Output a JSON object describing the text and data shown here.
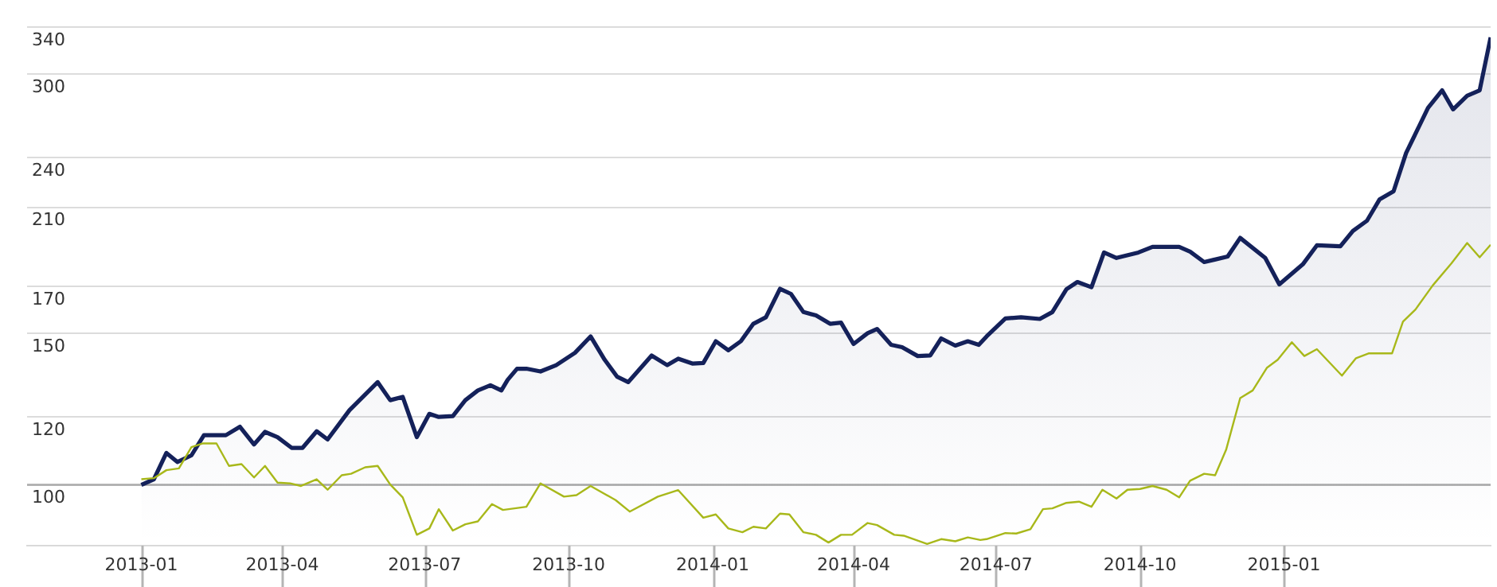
{
  "chart_data": {
    "type": "line",
    "log": "y",
    "grid": "y",
    "legend": false,
    "marker": "none",
    "line_style": "solid",
    "xlim": [
      "2012-10-20",
      "2015-05-13"
    ],
    "ylim": [
      85,
      340
    ],
    "ref_lines": [
      {
        "axis": "y",
        "value": 100,
        "color": "#aaaaaa"
      }
    ],
    "yticks": [
      100,
      120,
      150,
      170,
      210,
      240,
      300,
      340
    ],
    "xticks": [
      {
        "value": "2013-01-01",
        "label": "2013-01"
      },
      {
        "value": "2013-04-01",
        "label": "2013-04"
      },
      {
        "value": "2013-07-01",
        "label": "2013-07"
      },
      {
        "value": "2013-10-01",
        "label": "2013-10"
      },
      {
        "value": "2014-01-01",
        "label": "2014-01"
      },
      {
        "value": "2014-04-01",
        "label": "2014-04"
      },
      {
        "value": "2014-07-01",
        "label": "2014-07"
      },
      {
        "value": "2014-10-01",
        "label": "2014-10"
      },
      {
        "value": "2015-01-01",
        "label": "2015-01"
      }
    ],
    "series": [
      {
        "type": "area",
        "color": "#14215a",
        "x": [
          "2013-01-01",
          "2013-01-09",
          "2013-01-17",
          "2013-01-24",
          "2013-02-02",
          "2013-02-10",
          "2013-02-24",
          "2013-03-05",
          "2013-03-14",
          "2013-03-21",
          "2013-03-29",
          "2013-04-07",
          "2013-04-14",
          "2013-04-23",
          "2013-04-30",
          "2013-05-14",
          "2013-06-01",
          "2013-06-09",
          "2013-06-17",
          "2013-06-26",
          "2013-07-04",
          "2013-07-10",
          "2013-07-19",
          "2013-07-27",
          "2013-08-04",
          "2013-08-12",
          "2013-08-19",
          "2013-08-23",
          "2013-08-29",
          "2013-09-04",
          "2013-09-13",
          "2013-09-23",
          "2013-10-05",
          "2013-10-15",
          "2013-10-24",
          "2013-11-01",
          "2013-11-08",
          "2013-11-23",
          "2013-12-03",
          "2013-12-10",
          "2013-12-19",
          "2013-12-26",
          "2014-01-03",
          "2014-01-11",
          "2014-01-19",
          "2014-01-27",
          "2014-02-04",
          "2014-02-13",
          "2014-02-20",
          "2014-02-28",
          "2014-03-08",
          "2014-03-17",
          "2014-03-24",
          "2014-04-01",
          "2014-04-10",
          "2014-04-16",
          "2014-04-25",
          "2014-05-02",
          "2014-05-12",
          "2014-05-20",
          "2014-05-27",
          "2014-06-05",
          "2014-06-13",
          "2014-06-20",
          "2014-06-25",
          "2014-07-07",
          "2014-07-17",
          "2014-07-29",
          "2014-08-06",
          "2014-08-15",
          "2014-08-22",
          "2014-08-31",
          "2014-09-08",
          "2014-09-16",
          "2014-09-30",
          "2014-10-09",
          "2014-10-26",
          "2014-11-02",
          "2014-11-11",
          "2014-11-26",
          "2014-12-04",
          "2014-12-20",
          "2014-12-29",
          "2015-01-13",
          "2015-01-22",
          "2015-02-06",
          "2015-02-14",
          "2015-02-23",
          "2015-03-03",
          "2015-03-12",
          "2015-03-20",
          "2015-04-03",
          "2015-04-12",
          "2015-04-19",
          "2015-04-28",
          "2015-05-06",
          "2015-05-13"
        ],
        "values": [
          100,
          101.5,
          108.9,
          106.3,
          108.2,
          114.2,
          114.2,
          116.8,
          111.4,
          115.2,
          113.6,
          110.4,
          110.4,
          115.4,
          112.9,
          122.1,
          131.6,
          125.4,
          126.5,
          113.6,
          120.9,
          119.9,
          120.2,
          125.4,
          128.7,
          130.5,
          128.7,
          132.4,
          136.4,
          136.4,
          135.4,
          137.7,
          142.3,
          148.7,
          139.7,
          133.5,
          131.6,
          141.3,
          137.7,
          140.1,
          138.3,
          138.5,
          146.8,
          143.3,
          146.8,
          153.8,
          156.5,
          168.9,
          166.6,
          158.7,
          157.3,
          153.8,
          154.3,
          145.7,
          150,
          151.7,
          145.4,
          144.5,
          141.1,
          141.3,
          147.9,
          145.1,
          146.8,
          145.4,
          148.7,
          156,
          156.5,
          155.8,
          158.7,
          168.7,
          172,
          169.6,
          186.1,
          183.4,
          186.1,
          188.9,
          188.9,
          186.5,
          181.4,
          184.1,
          193.5,
          183.4,
          170.9,
          180.3,
          189.7,
          189.2,
          197.1,
          202.6,
          214.4,
          219.2,
          242.8,
          273.9,
          287.1,
          272.8,
          282.9,
          287.1,
          330.7
        ]
      },
      {
        "type": "line",
        "color": "#a8b81a",
        "x": [
          "2013-01-01",
          "2013-01-09",
          "2013-01-17",
          "2013-01-25",
          "2013-02-02",
          "2013-02-09",
          "2013-02-18",
          "2013-02-26",
          "2013-03-06",
          "2013-03-14",
          "2013-03-21",
          "2013-03-29",
          "2013-04-06",
          "2013-04-13",
          "2013-04-23",
          "2013-04-30",
          "2013-05-09",
          "2013-05-15",
          "2013-05-24",
          "2013-06-01",
          "2013-06-09",
          "2013-06-17",
          "2013-06-26",
          "2013-07-04",
          "2013-07-10",
          "2013-07-19",
          "2013-07-27",
          "2013-08-04",
          "2013-08-13",
          "2013-08-20",
          "2013-09-04",
          "2013-09-13",
          "2013-09-28",
          "2013-10-06",
          "2013-10-15",
          "2013-10-31",
          "2013-11-09",
          "2013-11-27",
          "2013-12-10",
          "2013-12-26",
          "2014-01-03",
          "2014-01-11",
          "2014-01-20",
          "2014-01-27",
          "2014-02-04",
          "2014-02-13",
          "2014-02-19",
          "2014-02-28",
          "2014-03-08",
          "2014-03-16",
          "2014-03-24",
          "2014-03-31",
          "2014-04-10",
          "2014-04-16",
          "2014-04-27",
          "2014-05-03",
          "2014-05-18",
          "2014-05-27",
          "2014-06-05",
          "2014-06-13",
          "2014-06-21",
          "2014-06-25",
          "2014-07-07",
          "2014-07-14",
          "2014-07-23",
          "2014-07-31",
          "2014-08-06",
          "2014-08-15",
          "2014-08-23",
          "2014-08-31",
          "2014-09-07",
          "2014-09-16",
          "2014-09-23",
          "2014-10-01",
          "2014-10-09",
          "2014-10-18",
          "2014-10-26",
          "2014-11-02",
          "2014-11-11",
          "2014-11-18",
          "2014-11-25",
          "2014-12-04",
          "2014-12-12",
          "2014-12-21",
          "2014-12-28",
          "2015-01-06",
          "2015-01-14",
          "2015-01-22",
          "2015-02-07",
          "2015-02-16",
          "2015-02-24",
          "2015-03-11",
          "2015-03-18",
          "2015-03-26",
          "2015-04-06",
          "2015-04-18",
          "2015-04-28",
          "2015-05-06",
          "2015-05-13"
        ],
        "values": [
          101.5,
          101.8,
          104,
          104.5,
          110.6,
          111.7,
          111.7,
          105.2,
          105.7,
          102,
          105.2,
          100.6,
          100.4,
          99.7,
          101.5,
          98.7,
          102.6,
          103,
          104.8,
          105.2,
          100.1,
          96.7,
          87.5,
          89,
          93.7,
          88.5,
          90,
          90.7,
          95,
          93.5,
          94.3,
          100.4,
          96.9,
          97.3,
          99.7,
          96,
          93.1,
          96.9,
          98.6,
          91.6,
          92.4,
          89,
          88.1,
          89.4,
          89,
          92.6,
          92.4,
          88.1,
          87.5,
          85.7,
          87.5,
          87.5,
          90.3,
          89.8,
          87.5,
          87.3,
          85.4,
          86.5,
          86,
          86.9,
          86.3,
          86.5,
          87.9,
          87.8,
          88.8,
          93.7,
          93.9,
          95.3,
          95.6,
          94.3,
          98.7,
          96.4,
          98.7,
          98.9,
          99.7,
          98.7,
          96.7,
          101.1,
          103,
          102.6,
          109.8,
          126.1,
          128.7,
          136.7,
          139.7,
          146.4,
          141.1,
          143.7,
          133.9,
          140.3,
          142.1,
          142.1,
          154.7,
          159.8,
          170.4,
          180.8,
          190.9,
          183.7,
          190
        ]
      }
    ]
  }
}
